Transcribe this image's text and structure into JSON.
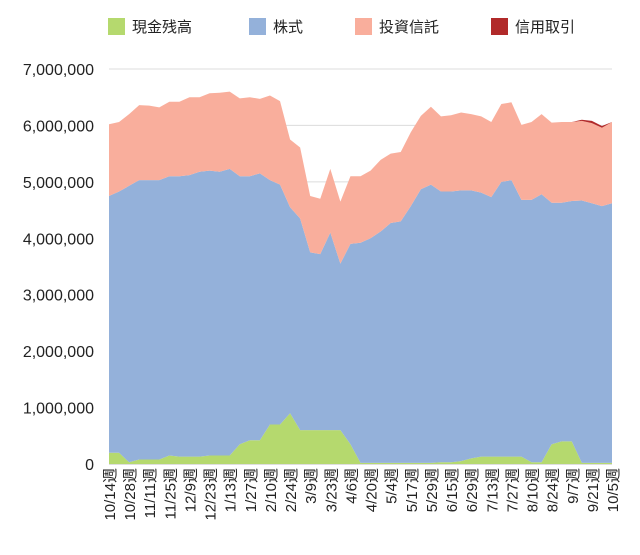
{
  "chart_data": {
    "type": "area",
    "stacked": true,
    "legend_position": "top",
    "grid": "horizontal",
    "ylim": [
      0,
      7000000
    ],
    "y_ticks": [
      0,
      1000000,
      2000000,
      3000000,
      4000000,
      5000000,
      6000000,
      7000000
    ],
    "y_tick_labels": [
      "0",
      "1,000,000",
      "2,000,000",
      "3,000,000",
      "4,000,000",
      "5,000,000",
      "6,000,000",
      "7,000,000"
    ],
    "x_tick_labels": [
      "10/14週",
      "10/28週",
      "11/11週",
      "11/25週",
      "12/9週",
      "12/23週",
      "1/13週",
      "1/27週",
      "2/10週",
      "2/24週",
      "3/9週",
      "3/23週",
      "4/6週",
      "4/20週",
      "5/4週",
      "5/17週",
      "5/29週",
      "6/15週",
      "6/29週",
      "7/13週",
      "7/27週",
      "8/10週",
      "8/24週",
      "9/7週",
      "9/21週",
      "10/5週"
    ],
    "x_tick_indices": [
      0,
      2,
      4,
      6,
      8,
      10,
      12,
      14,
      16,
      18,
      20,
      22,
      24,
      26,
      28,
      30,
      32,
      34,
      36,
      38,
      40,
      42,
      44,
      46,
      48,
      50
    ],
    "n_points": 51,
    "series": [
      {
        "name": "現金残高",
        "color": "#b5d96e",
        "values": [
          200000,
          200000,
          30000,
          80000,
          80000,
          80000,
          150000,
          130000,
          130000,
          130000,
          150000,
          150000,
          150000,
          350000,
          420000,
          420000,
          700000,
          700000,
          900000,
          600000,
          600000,
          600000,
          600000,
          600000,
          350000,
          20000,
          20000,
          20000,
          20000,
          20000,
          20000,
          20000,
          20000,
          30000,
          30000,
          50000,
          100000,
          130000,
          130000,
          130000,
          130000,
          130000,
          30000,
          30000,
          350000,
          400000,
          400000,
          20000,
          20000,
          20000,
          20000
        ]
      },
      {
        "name": "株式",
        "color": "#94b1da",
        "values": [
          4550000,
          4630000,
          4900000,
          4950000,
          4950000,
          4950000,
          4950000,
          4970000,
          4990000,
          5050000,
          5050000,
          5030000,
          5080000,
          4750000,
          4680000,
          4730000,
          4330000,
          4250000,
          3650000,
          3750000,
          3150000,
          3120000,
          3500000,
          2950000,
          3550000,
          3900000,
          3980000,
          4100000,
          4250000,
          4280000,
          4550000,
          4850000,
          4930000,
          4800000,
          4800000,
          4800000,
          4750000,
          4680000,
          4600000,
          4870000,
          4900000,
          4550000,
          4650000,
          4750000,
          4280000,
          4230000,
          4260000,
          4650000,
          4600000,
          4550000,
          4600000
        ]
      },
      {
        "name": "投資信託",
        "color": "#f9ae9c",
        "values": [
          1270000,
          1230000,
          1270000,
          1330000,
          1320000,
          1290000,
          1320000,
          1320000,
          1380000,
          1320000,
          1370000,
          1400000,
          1370000,
          1380000,
          1400000,
          1320000,
          1500000,
          1480000,
          1200000,
          1260000,
          1000000,
          980000,
          1130000,
          1100000,
          1200000,
          1180000,
          1200000,
          1270000,
          1230000,
          1230000,
          1310000,
          1300000,
          1380000,
          1330000,
          1350000,
          1380000,
          1350000,
          1350000,
          1330000,
          1380000,
          1380000,
          1330000,
          1380000,
          1420000,
          1420000,
          1430000,
          1400000,
          1410000,
          1420000,
          1390000,
          1440000
        ]
      },
      {
        "name": "信用取引",
        "color": "#b12a2a",
        "values": [
          0,
          0,
          0,
          0,
          0,
          0,
          0,
          0,
          0,
          0,
          0,
          0,
          0,
          0,
          0,
          0,
          0,
          0,
          0,
          0,
          0,
          0,
          0,
          0,
          0,
          0,
          0,
          0,
          0,
          0,
          0,
          0,
          0,
          0,
          0,
          0,
          0,
          0,
          0,
          0,
          0,
          0,
          0,
          0,
          0,
          0,
          0,
          20000,
          40000,
          30000,
          0
        ]
      }
    ]
  }
}
